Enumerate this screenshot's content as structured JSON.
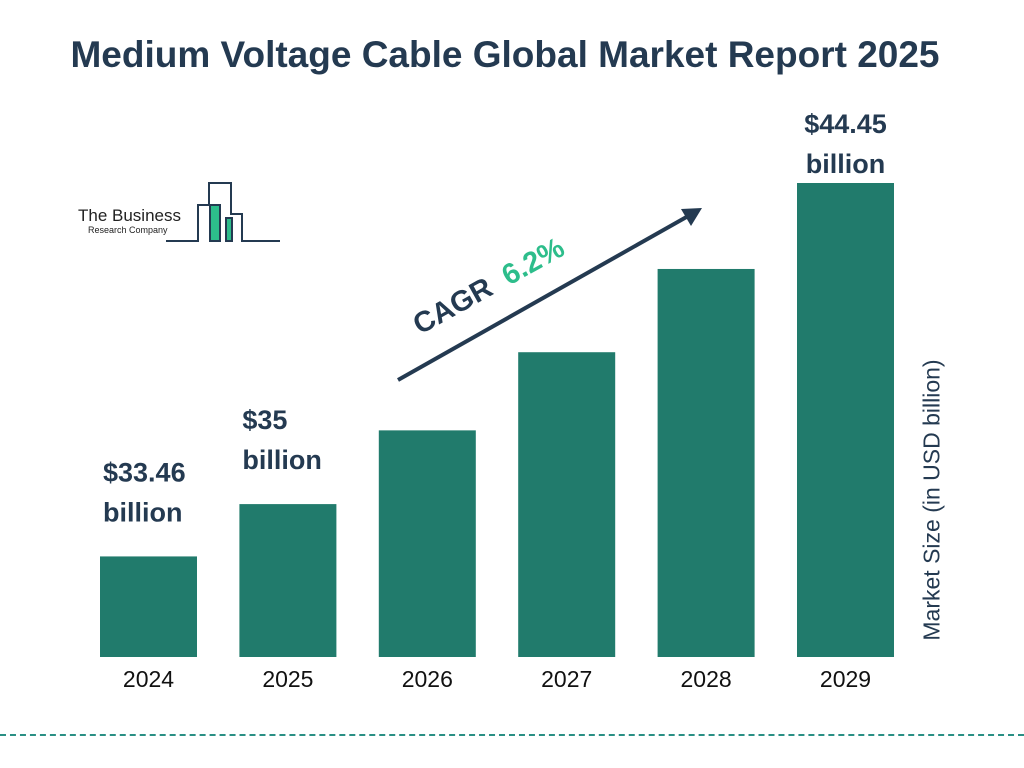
{
  "title": "Medium Voltage Cable Global Market Report 2025",
  "logo": {
    "line1": "The Business",
    "line2": "Research Company"
  },
  "cagr": {
    "label": "CAGR",
    "value": "6.2%"
  },
  "colors": {
    "bar": "#217b6c",
    "text": "#243a51",
    "cagr": "#2dbd8b",
    "divider": "#2a8f84"
  },
  "chart_data": {
    "type": "bar",
    "categories": [
      "2024",
      "2025",
      "2026",
      "2027",
      "2028",
      "2029"
    ],
    "values": [
      33.46,
      35,
      37.17,
      39.47,
      41.92,
      44.45
    ],
    "data_labels": [
      [
        "$33.46",
        "billion"
      ],
      [
        "$35",
        "billion"
      ],
      null,
      null,
      null,
      [
        "$44.45",
        "billion"
      ]
    ],
    "ylabel": "Market Size (in USD billion)",
    "grid": false,
    "legend": "none"
  }
}
